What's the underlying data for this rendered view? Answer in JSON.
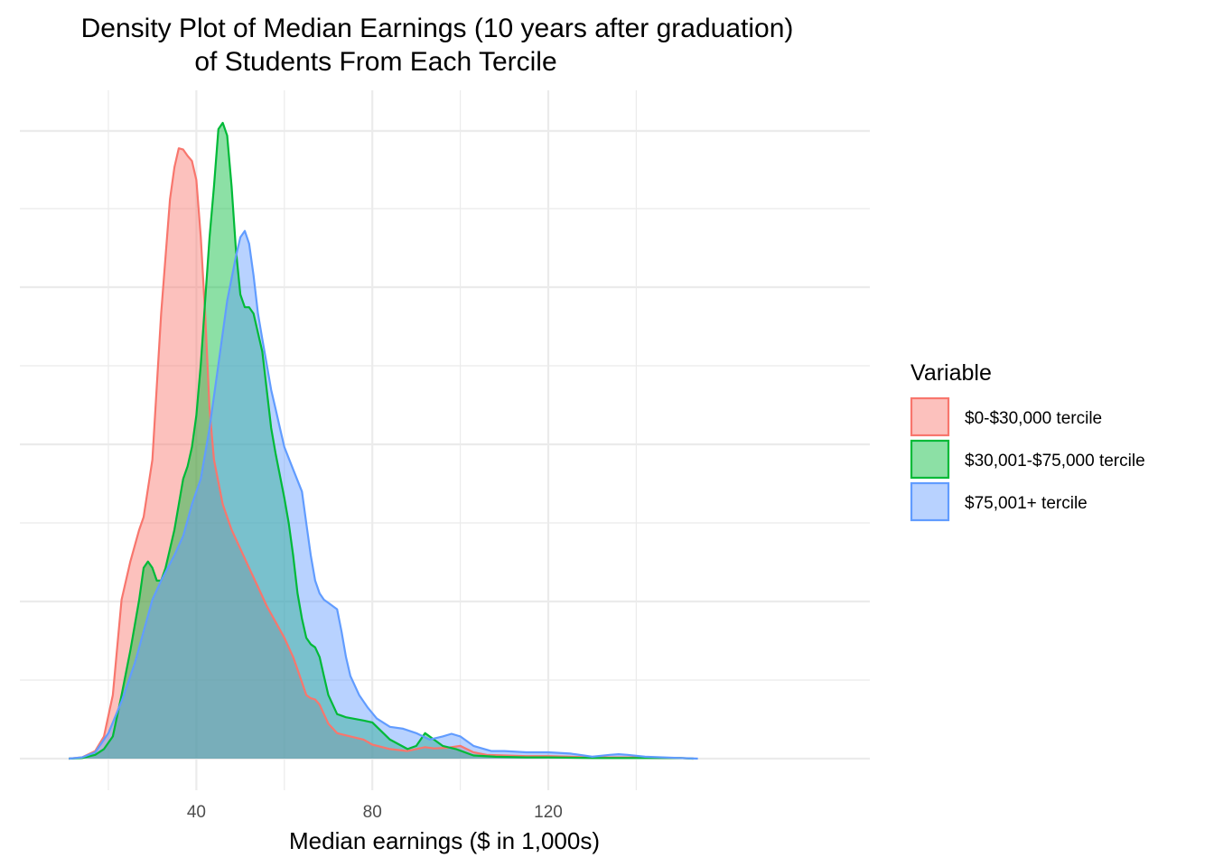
{
  "chart_data": {
    "type": "area",
    "subtype": "density",
    "title_lines": [
      "Density Plot of Median Earnings (10 years after graduation)",
      "of Students From Each Tercile"
    ],
    "xlabel": "Median earnings ($ in 1,000s)",
    "ylabel": "",
    "xlim": [
      4,
      154
    ],
    "ylim": [
      0,
      1
    ],
    "y_tick_labels_shown": false,
    "x_ticks": [
      40,
      80,
      120
    ],
    "x_tick_labels": [
      "40",
      "80",
      "120"
    ],
    "grid": true,
    "legend": {
      "title": "Variable",
      "position": "right"
    },
    "series": [
      {
        "name": "$0-$30,000 tercile",
        "color": "#F8766D",
        "points": [
          [
            11,
            0
          ],
          [
            14,
            0.002
          ],
          [
            17,
            0.012
          ],
          [
            19,
            0.035
          ],
          [
            21,
            0.1
          ],
          [
            23,
            0.25
          ],
          [
            25,
            0.31
          ],
          [
            27,
            0.36
          ],
          [
            28,
            0.38
          ],
          [
            30,
            0.47
          ],
          [
            32,
            0.7
          ],
          [
            34,
            0.88
          ],
          [
            35,
            0.93
          ],
          [
            36,
            0.96
          ],
          [
            37,
            0.958
          ],
          [
            38,
            0.948
          ],
          [
            39,
            0.94
          ],
          [
            40,
            0.91
          ],
          [
            41,
            0.82
          ],
          [
            42,
            0.7
          ],
          [
            43,
            0.55
          ],
          [
            44,
            0.47
          ],
          [
            46,
            0.4
          ],
          [
            48,
            0.36
          ],
          [
            50,
            0.33
          ],
          [
            52,
            0.3
          ],
          [
            54,
            0.27
          ],
          [
            56,
            0.24
          ],
          [
            58,
            0.215
          ],
          [
            60,
            0.19
          ],
          [
            62,
            0.16
          ],
          [
            63,
            0.14
          ],
          [
            64,
            0.12
          ],
          [
            65,
            0.1
          ],
          [
            66,
            0.095
          ],
          [
            67,
            0.093
          ],
          [
            68,
            0.085
          ],
          [
            69,
            0.07
          ],
          [
            70,
            0.055
          ],
          [
            72,
            0.04
          ],
          [
            75,
            0.035
          ],
          [
            78,
            0.03
          ],
          [
            80,
            0.022
          ],
          [
            84,
            0.015
          ],
          [
            88,
            0.012
          ],
          [
            92,
            0.018
          ],
          [
            94,
            0.016
          ],
          [
            97,
            0.017
          ],
          [
            100,
            0.02
          ],
          [
            103,
            0.01
          ],
          [
            106,
            0.006
          ],
          [
            110,
            0.005
          ],
          [
            115,
            0.004
          ],
          [
            120,
            0.004
          ],
          [
            125,
            0.003
          ],
          [
            130,
            0.002
          ],
          [
            135,
            0.002
          ],
          [
            140,
            0.002
          ],
          [
            145,
            0.001
          ],
          [
            150,
            0.001
          ],
          [
            153,
            0
          ]
        ]
      },
      {
        "name": "$30,001-$75,000 tercile",
        "color": "#00BA38",
        "points": [
          [
            11,
            0
          ],
          [
            14,
            0.001
          ],
          [
            17,
            0.006
          ],
          [
            19,
            0.015
          ],
          [
            21,
            0.035
          ],
          [
            23,
            0.1
          ],
          [
            25,
            0.17
          ],
          [
            27,
            0.25
          ],
          [
            28,
            0.3
          ],
          [
            29,
            0.31
          ],
          [
            30,
            0.3
          ],
          [
            31,
            0.28
          ],
          [
            32,
            0.28
          ],
          [
            33,
            0.3
          ],
          [
            35,
            0.36
          ],
          [
            37,
            0.44
          ],
          [
            38,
            0.46
          ],
          [
            39,
            0.49
          ],
          [
            40,
            0.54
          ],
          [
            41,
            0.62
          ],
          [
            42,
            0.72
          ],
          [
            43,
            0.82
          ],
          [
            44,
            0.9
          ],
          [
            45,
            0.99
          ],
          [
            46,
            1.0
          ],
          [
            47,
            0.98
          ],
          [
            48,
            0.9
          ],
          [
            49,
            0.8
          ],
          [
            50,
            0.73
          ],
          [
            51,
            0.71
          ],
          [
            52,
            0.71
          ],
          [
            53,
            0.7
          ],
          [
            55,
            0.64
          ],
          [
            57,
            0.52
          ],
          [
            58,
            0.48
          ],
          [
            60,
            0.41
          ],
          [
            61,
            0.37
          ],
          [
            62,
            0.32
          ],
          [
            63,
            0.26
          ],
          [
            64,
            0.22
          ],
          [
            65,
            0.19
          ],
          [
            66,
            0.18
          ],
          [
            67,
            0.175
          ],
          [
            68,
            0.16
          ],
          [
            69,
            0.13
          ],
          [
            70,
            0.1
          ],
          [
            72,
            0.07
          ],
          [
            74,
            0.065
          ],
          [
            78,
            0.06
          ],
          [
            80,
            0.057
          ],
          [
            84,
            0.03
          ],
          [
            88,
            0.015
          ],
          [
            90,
            0.02
          ],
          [
            92,
            0.04
          ],
          [
            94,
            0.03
          ],
          [
            96,
            0.02
          ],
          [
            99,
            0.015
          ],
          [
            103,
            0.005
          ],
          [
            108,
            0.003
          ],
          [
            115,
            0.002
          ],
          [
            120,
            0.002
          ],
          [
            130,
            0.001
          ],
          [
            140,
            0.001
          ],
          [
            150,
            0.001
          ],
          [
            153,
            0
          ]
        ]
      },
      {
        "name": "$75,001+ tercile",
        "color": "#619CFF",
        "points": [
          [
            11,
            0
          ],
          [
            14,
            0.002
          ],
          [
            17,
            0.01
          ],
          [
            20,
            0.04
          ],
          [
            23,
            0.09
          ],
          [
            26,
            0.15
          ],
          [
            28,
            0.2
          ],
          [
            30,
            0.25
          ],
          [
            32,
            0.28
          ],
          [
            35,
            0.32
          ],
          [
            37,
            0.35
          ],
          [
            39,
            0.4
          ],
          [
            41,
            0.44
          ],
          [
            43,
            0.52
          ],
          [
            45,
            0.62
          ],
          [
            47,
            0.72
          ],
          [
            49,
            0.79
          ],
          [
            50,
            0.82
          ],
          [
            51,
            0.83
          ],
          [
            52,
            0.81
          ],
          [
            53,
            0.76
          ],
          [
            54,
            0.7
          ],
          [
            55,
            0.66
          ],
          [
            56,
            0.62
          ],
          [
            57,
            0.58
          ],
          [
            58,
            0.55
          ],
          [
            59,
            0.52
          ],
          [
            60,
            0.49
          ],
          [
            62,
            0.455
          ],
          [
            64,
            0.42
          ],
          [
            65,
            0.37
          ],
          [
            66,
            0.32
          ],
          [
            67,
            0.28
          ],
          [
            68,
            0.26
          ],
          [
            69,
            0.25
          ],
          [
            70,
            0.245
          ],
          [
            72,
            0.235
          ],
          [
            73,
            0.2
          ],
          [
            74,
            0.16
          ],
          [
            75,
            0.13
          ],
          [
            77,
            0.1
          ],
          [
            79,
            0.08
          ],
          [
            81,
            0.063
          ],
          [
            84,
            0.05
          ],
          [
            87,
            0.047
          ],
          [
            90,
            0.04
          ],
          [
            93,
            0.03
          ],
          [
            96,
            0.035
          ],
          [
            98,
            0.039
          ],
          [
            100,
            0.035
          ],
          [
            103,
            0.02
          ],
          [
            107,
            0.012
          ],
          [
            110,
            0.012
          ],
          [
            115,
            0.01
          ],
          [
            120,
            0.01
          ],
          [
            125,
            0.008
          ],
          [
            130,
            0.003
          ],
          [
            134,
            0.006
          ],
          [
            136,
            0.007
          ],
          [
            138,
            0.006
          ],
          [
            142,
            0.003
          ],
          [
            146,
            0.002
          ],
          [
            150,
            0.001
          ],
          [
            154,
            0
          ]
        ]
      }
    ]
  }
}
